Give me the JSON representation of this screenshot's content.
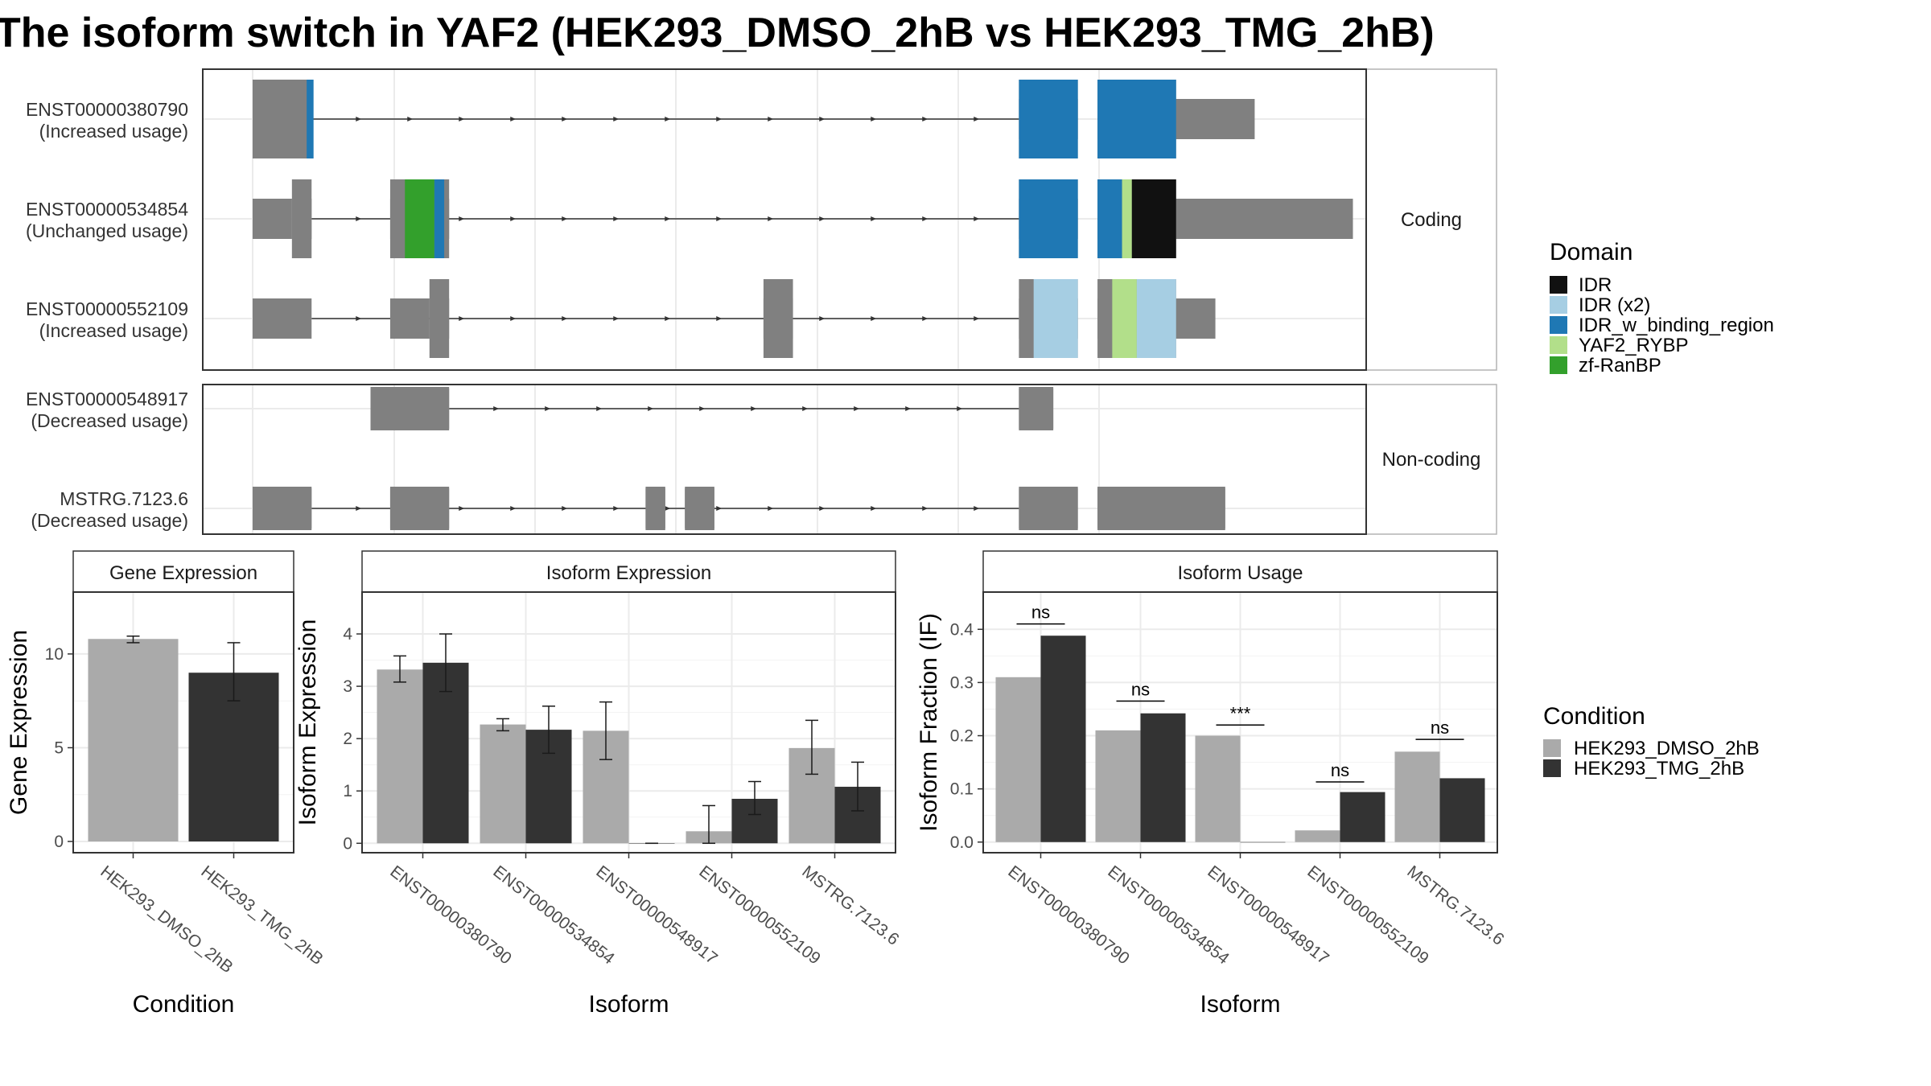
{
  "title": "The isoform switch in YAF2 (HEK293_DMSO_2hB vs HEK293_TMG_2hB)",
  "colors": {
    "dmso": "#aaaaaa",
    "tmg": "#333333",
    "exon": "#808080",
    "IDR": "#111111",
    "IDR (x2)": "#a6cee3",
    "IDR_w_binding_region": "#1f78b4",
    "YAF2_RYBP": "#b2df8a",
    "zf-RanBP": "#33a02c"
  },
  "transcript_panel": {
    "groups": [
      {
        "label": "Coding",
        "transcripts": [
          {
            "id": "ENST00000380790",
            "usage": "(Increased usage)",
            "intron": [
              0.06,
              0.78
            ],
            "exons": [
              [
                0.0,
                0.06
              ],
              [
                0.78,
                0.84
              ],
              [
                0.86,
                1.02
              ]
            ],
            "domains": [
              [
                "IDR_w_binding_region",
                0.055,
                0.062
              ],
              [
                "IDR_w_binding_region",
                0.78,
                0.84
              ],
              [
                "IDR_w_binding_region",
                0.86,
                0.94
              ]
            ],
            "cds": [
              [
                0.0,
                0.062
              ],
              [
                0.78,
                0.84
              ],
              [
                0.86,
                0.94
              ]
            ]
          },
          {
            "id": "ENST00000534854",
            "usage": "(Unchanged usage)",
            "intron": [
              0.06,
              0.78
            ],
            "exons": [
              [
                0.0,
                0.04
              ],
              [
                0.04,
                0.06
              ],
              [
                0.14,
                0.2
              ],
              [
                0.78,
                0.84
              ],
              [
                0.86,
                1.12
              ]
            ],
            "domains": [
              [
                "zf-RanBP",
                0.155,
                0.185
              ],
              [
                "IDR_w_binding_region",
                0.185,
                0.195
              ],
              [
                "IDR_w_binding_region",
                0.78,
                0.84
              ],
              [
                "IDR_w_binding_region",
                0.86,
                0.885
              ],
              [
                "YAF2_RYBP",
                0.885,
                0.895
              ],
              [
                "IDR",
                0.895,
                0.94
              ]
            ],
            "cds": [
              [
                0.04,
                0.06
              ],
              [
                0.14,
                0.2
              ],
              [
                0.78,
                0.84
              ],
              [
                0.86,
                0.94
              ]
            ]
          },
          {
            "id": "ENST00000552109",
            "usage": "(Increased usage)",
            "intron": [
              0.06,
              0.78
            ],
            "exons": [
              [
                0.0,
                0.06
              ],
              [
                0.14,
                0.18
              ],
              [
                0.18,
                0.2
              ],
              [
                0.52,
                0.55
              ],
              [
                0.78,
                0.84
              ],
              [
                0.86,
                0.98
              ]
            ],
            "domains": [
              [
                "IDR (x2)",
                0.795,
                0.84
              ],
              [
                "YAF2_RYBP",
                0.875,
                0.9
              ],
              [
                "IDR (x2)",
                0.9,
                0.94
              ]
            ],
            "cds": [
              [
                0.18,
                0.2
              ],
              [
                0.52,
                0.55
              ],
              [
                0.78,
                0.84
              ],
              [
                0.86,
                0.94
              ]
            ]
          }
        ]
      },
      {
        "label": "Non-coding",
        "transcripts": [
          {
            "id": "ENST00000548917",
            "usage": "(Decreased usage)",
            "intron": [
              0.2,
              0.78
            ],
            "exons": [
              [
                0.12,
                0.2
              ],
              [
                0.78,
                0.815
              ]
            ],
            "domains": [],
            "cds": []
          },
          {
            "id": "MSTRG.7123.6",
            "usage": "(Decreased usage)",
            "intron": [
              0.06,
              0.78
            ],
            "exons": [
              [
                0.0,
                0.06
              ],
              [
                0.14,
                0.2
              ],
              [
                0.4,
                0.42
              ],
              [
                0.44,
                0.47
              ],
              [
                0.78,
                0.84
              ],
              [
                0.86,
                0.99
              ]
            ],
            "domains": [],
            "cds": []
          }
        ]
      }
    ]
  },
  "legends": {
    "domain_title": "Domain",
    "domain_items": [
      "IDR",
      "IDR (x2)",
      "IDR_w_binding_region",
      "YAF2_RYBP",
      "zf-RanBP"
    ],
    "condition_title": "Condition",
    "condition_items": [
      "HEK293_DMSO_2hB",
      "HEK293_TMG_2hB"
    ]
  },
  "chart_data": [
    {
      "type": "bar",
      "title": "Gene Expression",
      "xlabel": "Condition",
      "ylabel": "Gene Expression",
      "categories": [
        "HEK293_DMSO_2hB",
        "HEK293_TMG_2hB"
      ],
      "series": [
        {
          "name": "HEK293_DMSO_2hB",
          "values": [
            10.8,
            null
          ],
          "err_low": [
            10.6,
            null
          ],
          "err_high": [
            10.95,
            null
          ]
        },
        {
          "name": "HEK293_TMG_2hB",
          "values": [
            null,
            9.0
          ],
          "err_low": [
            null,
            7.5
          ],
          "err_high": [
            null,
            10.6
          ]
        }
      ],
      "ylim": [
        -0.6,
        13.3
      ],
      "yticks": [
        0,
        5,
        10
      ],
      "grid": true
    },
    {
      "type": "bar",
      "title": "Isoform Expression",
      "xlabel": "Isoform",
      "ylabel": "Isoform Expression",
      "categories": [
        "ENST00000380790",
        "ENST00000534854",
        "ENST00000548917",
        "ENST00000552109",
        "MSTRG.7123.6"
      ],
      "series": [
        {
          "name": "HEK293_DMSO_2hB",
          "values": [
            3.32,
            2.27,
            2.15,
            0.23,
            1.82
          ],
          "err_low": [
            3.08,
            2.15,
            1.6,
            0.0,
            1.32
          ],
          "err_high": [
            3.58,
            2.38,
            2.7,
            0.72,
            2.35
          ]
        },
        {
          "name": "HEK293_TMG_2hB",
          "values": [
            3.45,
            2.17,
            0.0,
            0.85,
            1.08
          ],
          "err_low": [
            2.9,
            1.72,
            0.0,
            0.55,
            0.62
          ],
          "err_high": [
            4.0,
            2.62,
            0.0,
            1.18,
            1.55
          ]
        }
      ],
      "ylim": [
        -0.18,
        4.8
      ],
      "yticks": [
        0,
        1,
        2,
        3,
        4
      ],
      "grid": true
    },
    {
      "type": "bar",
      "title": "Isoform Usage",
      "xlabel": "Isoform",
      "ylabel": "Isoform Fraction (IF)",
      "categories": [
        "ENST00000380790",
        "ENST00000534854",
        "ENST00000548917",
        "ENST00000552109",
        "MSTRG.7123.6"
      ],
      "series": [
        {
          "name": "HEK293_DMSO_2hB",
          "values": [
            0.31,
            0.21,
            0.2,
            0.022,
            0.17
          ]
        },
        {
          "name": "HEK293_TMG_2hB",
          "values": [
            0.388,
            0.242,
            0.0,
            0.094,
            0.12
          ]
        }
      ],
      "significance": [
        "ns",
        "ns",
        "***",
        "ns",
        "ns"
      ],
      "sig_y": [
        0.41,
        0.265,
        0.22,
        0.113,
        0.193
      ],
      "ylim": [
        -0.02,
        0.47
      ],
      "yticks": [
        0.0,
        0.1,
        0.2,
        0.3,
        0.4
      ],
      "ytick_labels": [
        "0.0",
        "0.1",
        "0.2",
        "0.3",
        "0.4"
      ],
      "grid": true
    }
  ]
}
